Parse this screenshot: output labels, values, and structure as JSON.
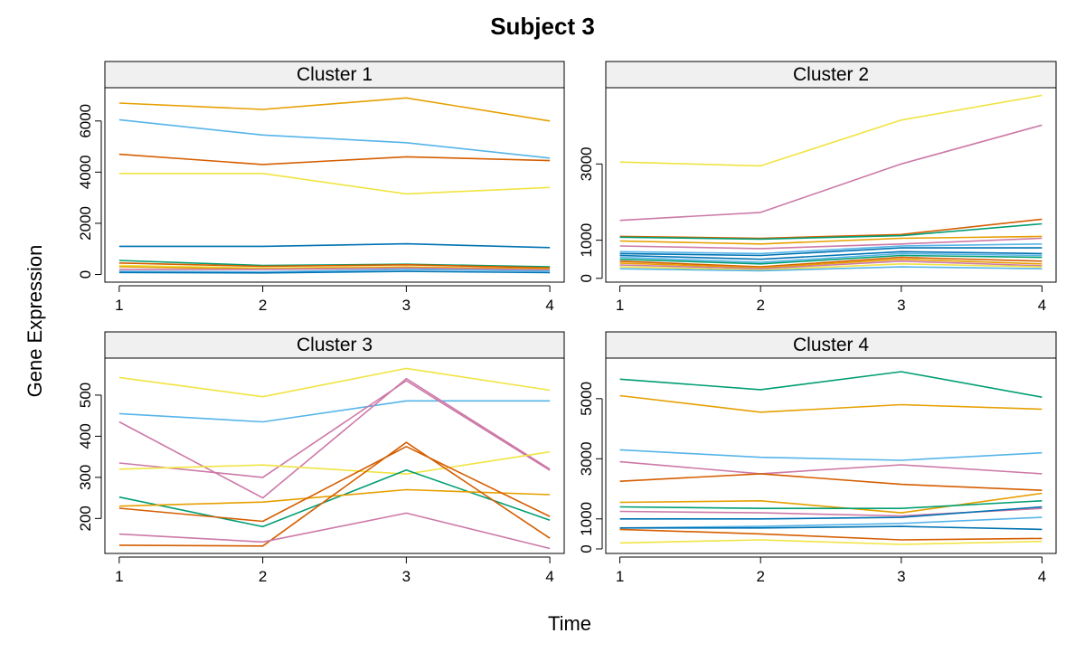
{
  "title": "Subject 3",
  "xlabel": "Time",
  "ylabel": "Gene Expression",
  "palette": {
    "orange": "#E69F00",
    "skyblue": "#56B4E9",
    "vermillion": "#D55E00",
    "yellow": "#F0E442",
    "blue": "#0072B2",
    "green": "#009E73",
    "pink": "#CC79A7"
  },
  "chart_data": [
    {
      "type": "line",
      "title": "Cluster 1",
      "x": [
        1,
        2,
        3,
        4
      ],
      "xticks": [
        1,
        2,
        3,
        4
      ],
      "yticks": [
        0,
        2000,
        4000,
        6000
      ],
      "ylim": [
        -300,
        7300
      ],
      "series": [
        {
          "color": "#E69F00",
          "values": [
            6700,
            6450,
            6900,
            6000
          ]
        },
        {
          "color": "#56B4E9",
          "values": [
            6050,
            5450,
            5150,
            4550
          ]
        },
        {
          "color": "#D55E00",
          "values": [
            4700,
            4300,
            4600,
            4450
          ]
        },
        {
          "color": "#F0E442",
          "values": [
            3950,
            3950,
            3150,
            3400
          ]
        },
        {
          "color": "#0072B2",
          "values": [
            1100,
            1100,
            1200,
            1050
          ]
        },
        {
          "color": "#009E73",
          "values": [
            550,
            350,
            400,
            300
          ]
        },
        {
          "color": "#D55E00",
          "values": [
            450,
            320,
            380,
            260
          ]
        },
        {
          "color": "#F0E442",
          "values": [
            350,
            250,
            300,
            200
          ]
        },
        {
          "color": "#E69F00",
          "values": [
            300,
            220,
            280,
            220
          ]
        },
        {
          "color": "#CC79A7",
          "values": [
            200,
            200,
            250,
            180
          ]
        },
        {
          "color": "#56B4E9",
          "values": [
            120,
            100,
            200,
            130
          ]
        },
        {
          "color": "#0072B2",
          "values": [
            80,
            60,
            120,
            70
          ]
        }
      ]
    },
    {
      "type": "line",
      "title": "Cluster 2",
      "x": [
        1,
        2,
        3,
        4
      ],
      "xticks": [
        1,
        2,
        3,
        4
      ],
      "yticks": [
        0,
        1000,
        3000
      ],
      "ylim": [
        -100,
        5000
      ],
      "series": [
        {
          "color": "#F0E442",
          "values": [
            3050,
            2950,
            4150,
            4800
          ]
        },
        {
          "color": "#CC79A7",
          "values": [
            1520,
            1730,
            3000,
            4020
          ]
        },
        {
          "color": "#D55E00",
          "values": [
            1100,
            1050,
            1150,
            1550
          ]
        },
        {
          "color": "#009E73",
          "values": [
            1080,
            1030,
            1120,
            1430
          ]
        },
        {
          "color": "#E69F00",
          "values": [
            980,
            900,
            1050,
            1100
          ]
        },
        {
          "color": "#CC79A7",
          "values": [
            850,
            780,
            900,
            1050
          ]
        },
        {
          "color": "#56B4E9",
          "values": [
            700,
            650,
            850,
            900
          ]
        },
        {
          "color": "#0072B2",
          "values": [
            650,
            600,
            800,
            800
          ]
        },
        {
          "color": "#0072B2",
          "values": [
            600,
            500,
            700,
            650
          ]
        },
        {
          "color": "#56B4E9",
          "values": [
            550,
            420,
            650,
            600
          ]
        },
        {
          "color": "#009E73",
          "values": [
            500,
            380,
            600,
            550
          ]
        },
        {
          "color": "#D55E00",
          "values": [
            450,
            300,
            550,
            450
          ]
        },
        {
          "color": "#E69F00",
          "values": [
            400,
            280,
            500,
            380
          ]
        },
        {
          "color": "#CC79A7",
          "values": [
            350,
            250,
            450,
            330
          ]
        },
        {
          "color": "#F0E442",
          "values": [
            300,
            220,
            380,
            300
          ]
        },
        {
          "color": "#56B4E9",
          "values": [
            250,
            200,
            300,
            250
          ]
        }
      ]
    },
    {
      "type": "line",
      "title": "Cluster 3",
      "x": [
        1,
        2,
        3,
        4
      ],
      "xticks": [
        1,
        2,
        3,
        4
      ],
      "yticks": [
        200,
        300,
        400,
        500
      ],
      "ylim": [
        115,
        590
      ],
      "series": [
        {
          "color": "#F0E442",
          "values": [
            543,
            496,
            565,
            512
          ]
        },
        {
          "color": "#56B4E9",
          "values": [
            455,
            435,
            486,
            486
          ]
        },
        {
          "color": "#CC79A7",
          "values": [
            435,
            250,
            540,
            320
          ]
        },
        {
          "color": "#CC79A7",
          "values": [
            335,
            300,
            535,
            317
          ]
        },
        {
          "color": "#F0E442",
          "values": [
            320,
            330,
            308,
            362
          ]
        },
        {
          "color": "#009E73",
          "values": [
            252,
            180,
            318,
            196
          ]
        },
        {
          "color": "#E69F00",
          "values": [
            230,
            240,
            270,
            258
          ]
        },
        {
          "color": "#D55E00",
          "values": [
            225,
            193,
            375,
            205
          ]
        },
        {
          "color": "#D55E00",
          "values": [
            135,
            133,
            385,
            152
          ]
        },
        {
          "color": "#CC79A7",
          "values": [
            162,
            143,
            213,
            127
          ]
        }
      ]
    },
    {
      "type": "line",
      "title": "Cluster 4",
      "x": [
        1,
        2,
        3,
        4
      ],
      "xticks": [
        1,
        2,
        3,
        4
      ],
      "yticks": [
        0,
        1000,
        3000,
        5000
      ],
      "ylim": [
        -150,
        6350
      ],
      "series": [
        {
          "color": "#009E73",
          "values": [
            5650,
            5300,
            5900,
            5050
          ]
        },
        {
          "color": "#E69F00",
          "values": [
            5100,
            4550,
            4800,
            4650
          ]
        },
        {
          "color": "#56B4E9",
          "values": [
            3300,
            3050,
            2950,
            3200
          ]
        },
        {
          "color": "#CC79A7",
          "values": [
            2900,
            2500,
            2800,
            2500
          ]
        },
        {
          "color": "#D55E00",
          "values": [
            2250,
            2500,
            2150,
            1950
          ]
        },
        {
          "color": "#E69F00",
          "values": [
            1550,
            1600,
            1200,
            1850
          ]
        },
        {
          "color": "#009E73",
          "values": [
            1400,
            1350,
            1350,
            1600
          ]
        },
        {
          "color": "#CC79A7",
          "values": [
            1250,
            1200,
            1100,
            1350
          ]
        },
        {
          "color": "#0072B2",
          "values": [
            1000,
            1000,
            1050,
            1400
          ]
        },
        {
          "color": "#56B4E9",
          "values": [
            700,
            750,
            850,
            1050
          ]
        },
        {
          "color": "#0072B2",
          "values": [
            700,
            700,
            750,
            650
          ]
        },
        {
          "color": "#D55E00",
          "values": [
            650,
            500,
            300,
            350
          ]
        },
        {
          "color": "#F0E442",
          "values": [
            200,
            300,
            150,
            250
          ]
        }
      ]
    }
  ]
}
